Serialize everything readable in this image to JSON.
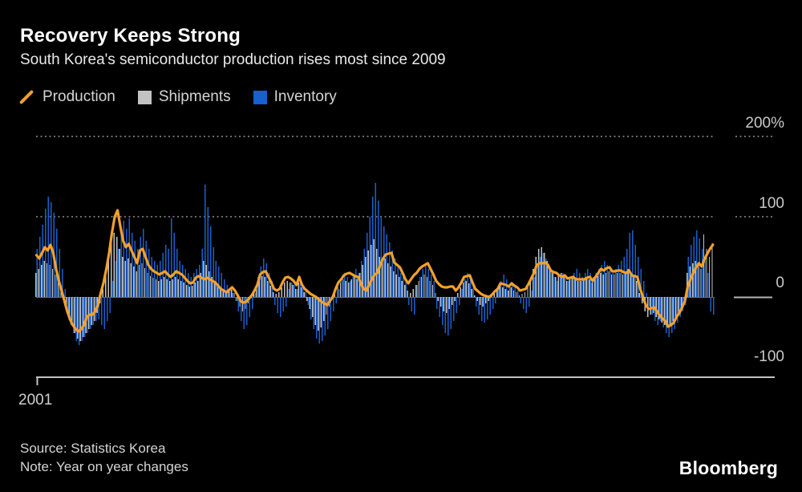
{
  "header": {
    "title": "Recovery Keeps Strong",
    "subtitle": "South Korea's semiconductor production rises most since 2009"
  },
  "legend": {
    "items": [
      {
        "label": "Production",
        "marker": "diagonal-line",
        "color": "#f5a02b"
      },
      {
        "label": "Shipments",
        "marker": "square",
        "color": "#c2c2c2"
      },
      {
        "label": "Inventory",
        "marker": "square",
        "color": "#1760cd"
      }
    ]
  },
  "y_axis": {
    "tick_labels": [
      "200%",
      "100",
      "0",
      "-100"
    ],
    "tick_values": [
      200,
      100,
      0,
      -100
    ]
  },
  "x_axis": {
    "tick_label": "2001"
  },
  "footer": {
    "source": "Source: Statistics Korea",
    "note": "Note: Year on year changes",
    "brand": "Bloomberg"
  },
  "chart_data": {
    "type": "bar",
    "subtype": "monthly bar pairs (Shipments, Inventory) with overlaid line (Production)",
    "title": "Recovery Keeps Strong",
    "subtitle": "South Korea's semiconductor production rises most since 2009",
    "unit": "percent, year-on-year change",
    "frequency": "monthly",
    "x_start_label": "2001",
    "n_points": 243,
    "ylim": [
      -100,
      200
    ],
    "gridlines": {
      "dotted": [
        200,
        100
      ],
      "zero": 0,
      "bottom": -100
    },
    "legend_position": "top-left",
    "series": [
      {
        "name": "Production",
        "type": "line",
        "color": "#f5a02b",
        "values": [
          52,
          48,
          55,
          62,
          58,
          65,
          55,
          35,
          20,
          8,
          -5,
          -18,
          -28,
          -35,
          -40,
          -43,
          -40,
          -35,
          -25,
          -22,
          -22,
          -18,
          -10,
          5,
          18,
          35,
          55,
          80,
          100,
          108,
          88,
          70,
          62,
          66,
          58,
          50,
          42,
          58,
          60,
          50,
          40,
          35,
          32,
          30,
          28,
          30,
          32,
          28,
          25,
          28,
          32,
          30,
          28,
          24,
          20,
          17,
          18,
          24,
          26,
          24,
          22,
          24,
          22,
          20,
          18,
          14,
          10,
          8,
          6,
          9,
          12,
          8,
          2,
          -5,
          -7,
          -6,
          -2,
          2,
          8,
          15,
          28,
          31,
          32,
          25,
          18,
          10,
          8,
          10,
          18,
          24,
          25,
          23,
          20,
          15,
          25,
          15,
          10,
          7,
          4,
          2,
          0,
          -3,
          -6,
          -8,
          -10,
          -5,
          0,
          10,
          18,
          22,
          27,
          29,
          30,
          28,
          26,
          25,
          18,
          10,
          8,
          15,
          22,
          28,
          30,
          40,
          48,
          53,
          54,
          55,
          43,
          40,
          37,
          30,
          22,
          17,
          22,
          27,
          30,
          35,
          38,
          40,
          42,
          35,
          28,
          20,
          16,
          13,
          12,
          12,
          13,
          13,
          8,
          12,
          18,
          25,
          26,
          27,
          18,
          10,
          7,
          4,
          2,
          1,
          0,
          3,
          7,
          10,
          17,
          16,
          15,
          13,
          17,
          14,
          12,
          8,
          9,
          10,
          16,
          23,
          30,
          40,
          42,
          42,
          43,
          40,
          33,
          31,
          30,
          27,
          25,
          27,
          23,
          24,
          25,
          22,
          22,
          22,
          22,
          24,
          25,
          20,
          25,
          30,
          35,
          33,
          36,
          37,
          32,
          32,
          33,
          33,
          31,
          30,
          33,
          27,
          26,
          25,
          10,
          0,
          -10,
          -15,
          -14,
          -13,
          -18,
          -23,
          -27,
          -30,
          -37,
          -35,
          -32,
          -25,
          -20,
          -13,
          -5,
          13,
          22,
          30,
          37,
          42,
          38,
          47,
          54,
          60,
          65
        ]
      },
      {
        "name": "Shipments",
        "type": "bar",
        "color": "#c2c2c2",
        "values": [
          30,
          35,
          40,
          45,
          42,
          40,
          35,
          28,
          18,
          8,
          -5,
          -15,
          -25,
          -35,
          -45,
          -52,
          -55,
          -50,
          -45,
          -40,
          -35,
          -30,
          -20,
          -8,
          10,
          30,
          50,
          68,
          80,
          75,
          60,
          50,
          45,
          48,
          42,
          38,
          32,
          40,
          42,
          36,
          30,
          26,
          24,
          22,
          20,
          22,
          25,
          22,
          20,
          22,
          25,
          22,
          20,
          18,
          15,
          13,
          14,
          18,
          20,
          30,
          45,
          40,
          32,
          25,
          20,
          15,
          10,
          7,
          5,
          7,
          9,
          5,
          -5,
          -12,
          -18,
          -15,
          -8,
          -2,
          5,
          12,
          22,
          26,
          25,
          20,
          14,
          6,
          4,
          6,
          12,
          18,
          20,
          18,
          15,
          10,
          18,
          12,
          6,
          -5,
          -15,
          -25,
          -35,
          -42,
          -38,
          -30,
          -22,
          -12,
          -4,
          6,
          14,
          18,
          22,
          20,
          18,
          22,
          25,
          22,
          30,
          40,
          50,
          58,
          65,
          72,
          60,
          50,
          45,
          48,
          42,
          38,
          32,
          28,
          25,
          20,
          15,
          8,
          5,
          10,
          15,
          20,
          25,
          28,
          25,
          20,
          15,
          5,
          -5,
          -12,
          -18,
          -20,
          -15,
          -10,
          -5,
          5,
          12,
          18,
          20,
          17,
          10,
          2,
          -5,
          -10,
          -12,
          -8,
          -5,
          2,
          6,
          10,
          14,
          12,
          10,
          8,
          12,
          8,
          6,
          2,
          4,
          6,
          12,
          20,
          35,
          50,
          60,
          62,
          55,
          45,
          35,
          30,
          25,
          28,
          30,
          25,
          20,
          22,
          25,
          22,
          20,
          20,
          22,
          25,
          22,
          18,
          22,
          26,
          30,
          28,
          30,
          32,
          28,
          28,
          30,
          30,
          28,
          30,
          35,
          30,
          25,
          20,
          5,
          -8,
          -18,
          -25,
          -22,
          -20,
          -25,
          -28,
          -32,
          -35,
          -38,
          -35,
          -30,
          -25,
          -20,
          -15,
          -5,
          30,
          38,
          42,
          45,
          40,
          35,
          78,
          60,
          50,
          67
        ]
      },
      {
        "name": "Inventory",
        "type": "bar",
        "color": "#1760cd",
        "values": [
          60,
          75,
          90,
          110,
          125,
          118,
          105,
          85,
          60,
          35,
          10,
          -20,
          -35,
          -45,
          -55,
          -60,
          -55,
          -50,
          -45,
          -40,
          -35,
          -30,
          -28,
          -35,
          -40,
          -30,
          -20,
          20,
          45,
          60,
          80,
          95,
          85,
          98,
          80,
          70,
          60,
          75,
          85,
          70,
          60,
          50,
          45,
          40,
          45,
          55,
          65,
          60,
          98,
          80,
          60,
          45,
          40,
          35,
          30,
          25,
          30,
          35,
          40,
          60,
          140,
          112,
          88,
          62,
          45,
          38,
          30,
          22,
          15,
          10,
          5,
          -5,
          -18,
          -30,
          -40,
          -35,
          -25,
          -15,
          5,
          25,
          38,
          48,
          42,
          30,
          20,
          -10,
          -20,
          -25,
          -18,
          -12,
          10,
          18,
          15,
          10,
          20,
          15,
          8,
          -10,
          -28,
          -40,
          -52,
          -58,
          -55,
          -48,
          -40,
          -30,
          -18,
          -8,
          10,
          20,
          30,
          25,
          20,
          28,
          35,
          30,
          45,
          60,
          80,
          100,
          125,
          142,
          120,
          100,
          88,
          78,
          68,
          58,
          48,
          38,
          30,
          25,
          20,
          -10,
          -18,
          -22,
          15,
          25,
          35,
          40,
          35,
          28,
          20,
          -15,
          -25,
          -35,
          -45,
          -48,
          -40,
          -30,
          -20,
          -10,
          10,
          22,
          30,
          25,
          15,
          -12,
          -22,
          -30,
          -32,
          -28,
          -22,
          -15,
          -8,
          10,
          20,
          28,
          22,
          15,
          18,
          12,
          8,
          -8,
          -15,
          -20,
          -12,
          8,
          25,
          40,
          50,
          55,
          48,
          40,
          32,
          25,
          20,
          25,
          30,
          25,
          20,
          25,
          30,
          35,
          30,
          25,
          30,
          35,
          30,
          25,
          30,
          35,
          40,
          45,
          40,
          35,
          30,
          35,
          40,
          45,
          50,
          60,
          80,
          83,
          65,
          50,
          35,
          20,
          5,
          -12,
          -22,
          -30,
          -35,
          -30,
          -38,
          -45,
          -50,
          -45,
          -40,
          -32,
          -25,
          -18,
          -10,
          50,
          65,
          75,
          83,
          73,
          60,
          45,
          30,
          -18,
          -22
        ]
      }
    ]
  }
}
